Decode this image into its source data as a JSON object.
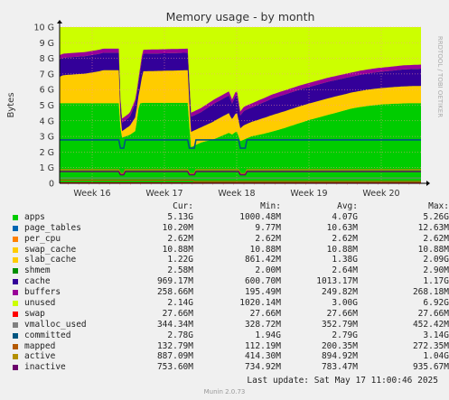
{
  "chart_data": {
    "type": "area",
    "title": "Memory usage - by month",
    "ylabel": "Bytes",
    "watermark": "RRDTOOL / TOBI OETIKER",
    "ylim": [
      0,
      10
    ],
    "y_unit": "G",
    "yticks": [
      "0",
      "1 G",
      "2 G",
      "3 G",
      "4 G",
      "5 G",
      "6 G",
      "7 G",
      "8 G",
      "9 G",
      "10 G"
    ],
    "x_range_weeks": [
      15.45,
      20.45
    ],
    "xticks": [
      {
        "label": "Week 16",
        "week": 15.9
      },
      {
        "label": "Week 17",
        "week": 16.9
      },
      {
        "label": "Week 18",
        "week": 17.9
      },
      {
        "label": "Week 19",
        "week": 18.9
      },
      {
        "label": "Week 20",
        "week": 19.9
      }
    ],
    "apps_trace": {
      "x_week": [
        15.45,
        16.05,
        16.27,
        16.3,
        16.42,
        16.5,
        16.55,
        16.6,
        17.23,
        17.26,
        17.4,
        17.6,
        17.8,
        17.83,
        17.9,
        17.95,
        18.0,
        18.1,
        18.3,
        18.5,
        18.7,
        18.9,
        19.1,
        19.3,
        19.5,
        19.7,
        19.9,
        20.1,
        20.3,
        20.45
      ],
      "top_g": [
        5.13,
        5.13,
        5.13,
        2.9,
        3.1,
        3.35,
        5.1,
        5.15,
        5.15,
        2.3,
        2.6,
        2.85,
        3.25,
        3.1,
        3.35,
        2.7,
        2.8,
        3.0,
        3.2,
        3.45,
        3.75,
        4.05,
        4.3,
        4.55,
        4.8,
        4.95,
        5.05,
        5.1,
        5.13,
        5.13
      ]
    },
    "total_trace": {
      "x_week": [
        15.45,
        15.5,
        15.8,
        16.0,
        16.05,
        16.27,
        16.3,
        16.42,
        16.5,
        16.6,
        17.23,
        17.26,
        17.4,
        17.6,
        17.8,
        17.83,
        17.9,
        17.95,
        18.0,
        18.2,
        18.4,
        18.6,
        18.8,
        19.0,
        19.2,
        19.4,
        19.6,
        19.8,
        20.0,
        20.2,
        20.45
      ],
      "top_g": [
        8.2,
        8.3,
        8.4,
        8.55,
        8.62,
        8.62,
        4.1,
        4.5,
        5.4,
        8.55,
        8.62,
        4.5,
        4.8,
        5.4,
        5.9,
        5.3,
        6.0,
        4.6,
        4.9,
        5.3,
        5.7,
        6.0,
        6.3,
        6.55,
        6.8,
        7.0,
        7.2,
        7.35,
        7.45,
        7.55,
        7.6
      ]
    },
    "series": [
      {
        "name": "apps",
        "color": "#00cc00",
        "cur": "5.13G",
        "min": "1000.48M",
        "avg": "4.07G",
        "max": "5.26G"
      },
      {
        "name": "page_tables",
        "color": "#0066b3",
        "cur": "10.20M",
        "min": "9.77M",
        "avg": "10.63M",
        "max": "12.63M"
      },
      {
        "name": "per_cpu",
        "color": "#ff8000",
        "cur": "2.62M",
        "min": "2.62M",
        "avg": "2.62M",
        "max": "2.62M"
      },
      {
        "name": "swap_cache",
        "color": "#ffcc00",
        "cur": "10.88M",
        "min": "10.88M",
        "avg": "10.88M",
        "max": "10.88M"
      },
      {
        "name": "slab_cache",
        "color": "#ffcc00",
        "cur": "1.22G",
        "min": "861.42M",
        "avg": "1.38G",
        "max": "2.09G"
      },
      {
        "name": "shmem",
        "color": "#008f00",
        "cur": "2.58M",
        "min": "2.00M",
        "avg": "2.64M",
        "max": "2.90M"
      },
      {
        "name": "cache",
        "color": "#330099",
        "cur": "969.17M",
        "min": "600.70M",
        "avg": "1013.17M",
        "max": "1.17G"
      },
      {
        "name": "buffers",
        "color": "#990099",
        "cur": "258.66M",
        "min": "195.49M",
        "avg": "249.82M",
        "max": "268.18M"
      },
      {
        "name": "unused",
        "color": "#ccff00",
        "cur": "2.14G",
        "min": "1020.14M",
        "avg": "3.00G",
        "max": "6.92G"
      },
      {
        "name": "swap",
        "color": "#ff0000",
        "cur": "27.66M",
        "min": "27.66M",
        "avg": "27.66M",
        "max": "27.66M"
      },
      {
        "name": "vmalloc_used",
        "color": "#808080",
        "cur": "344.34M",
        "min": "328.72M",
        "avg": "352.79M",
        "max": "452.42M"
      },
      {
        "name": "committed",
        "color": "#005580",
        "cur": "2.78G",
        "min": "1.94G",
        "avg": "2.79G",
        "max": "3.14G"
      },
      {
        "name": "mapped",
        "color": "#b35900",
        "cur": "132.79M",
        "min": "112.19M",
        "avg": "200.35M",
        "max": "272.35M"
      },
      {
        "name": "active",
        "color": "#b38f00",
        "cur": "887.09M",
        "min": "414.30M",
        "avg": "894.92M",
        "max": "1.04G"
      },
      {
        "name": "inactive",
        "color": "#6b006b",
        "cur": "753.60M",
        "min": "734.92M",
        "avg": "783.47M",
        "max": "935.67M"
      }
    ]
  },
  "legend_header": {
    "cur": "Cur:",
    "min": "Min:",
    "avg": "Avg:",
    "max": "Max:"
  },
  "last_update": "Last update: Sat May 17 11:00:46 2025",
  "footer": "Munin 2.0.73"
}
